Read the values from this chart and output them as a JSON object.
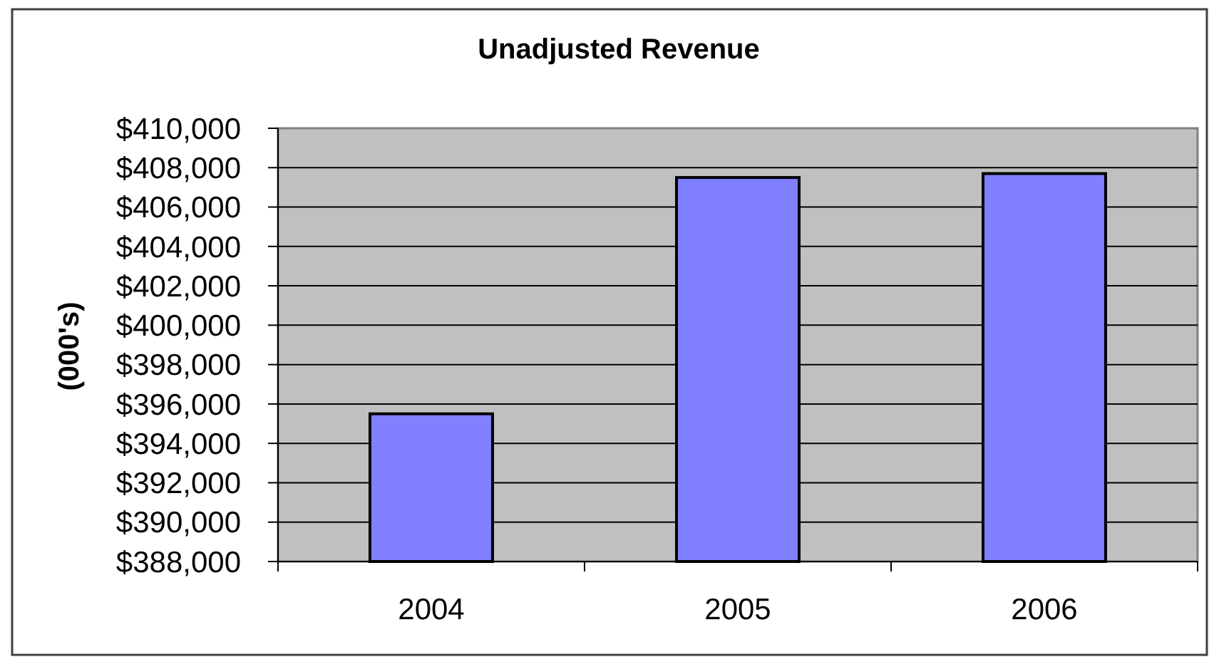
{
  "chart_data": {
    "type": "bar",
    "title": "Unadjusted Revenue",
    "ylabel": "(000's)",
    "categories": [
      "2004",
      "2005",
      "2006"
    ],
    "values": [
      395500,
      407500,
      407700
    ],
    "color": "#8080ff",
    "ylim": [
      388000,
      410000
    ],
    "yticks": [
      {
        "value": 388000,
        "label": "$388,000"
      },
      {
        "value": 390000,
        "label": "$390,000"
      },
      {
        "value": 392000,
        "label": "$392,000"
      },
      {
        "value": 394000,
        "label": "$394,000"
      },
      {
        "value": 396000,
        "label": "$396,000"
      },
      {
        "value": 398000,
        "label": "$398,000"
      },
      {
        "value": 400000,
        "label": "$400,000"
      },
      {
        "value": 402000,
        "label": "$402,000"
      },
      {
        "value": 404000,
        "label": "$404,000"
      },
      {
        "value": 406000,
        "label": "$406,000"
      },
      {
        "value": 408000,
        "label": "$408,000"
      },
      {
        "value": 410000,
        "label": "$410,000"
      }
    ],
    "grid": "y"
  }
}
